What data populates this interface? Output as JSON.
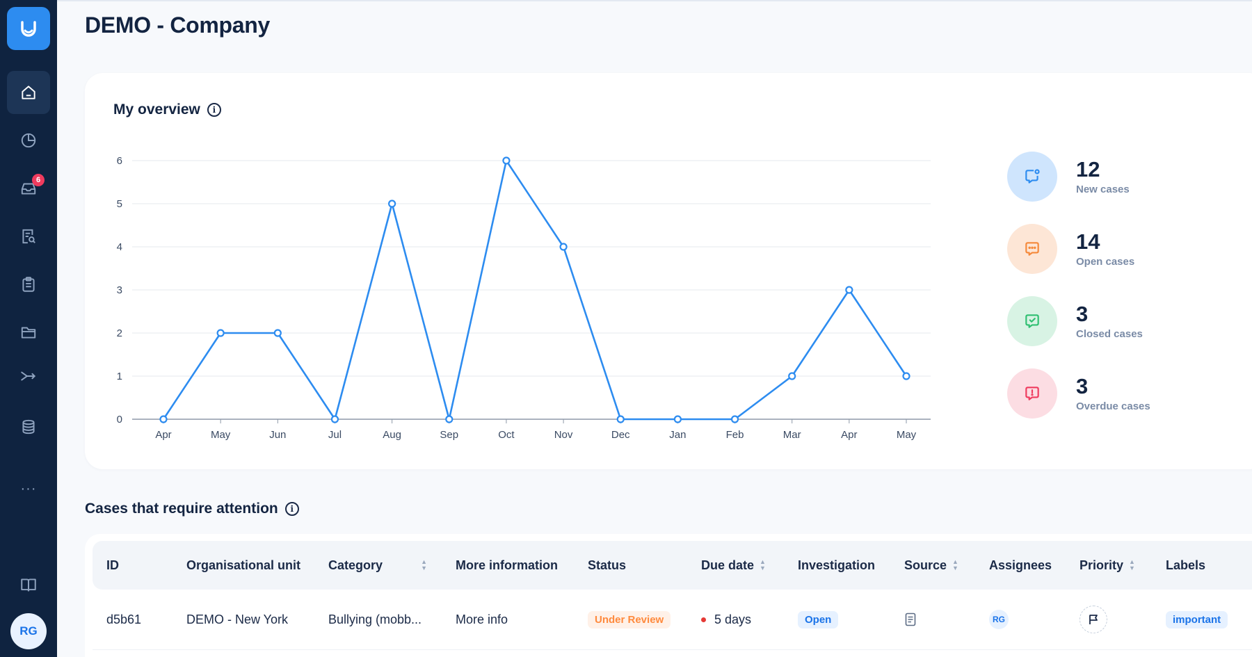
{
  "app": {
    "title": "DEMO - Company",
    "user_initials": "RG"
  },
  "sidebar": {
    "items": [
      {
        "name": "home",
        "icon": "home-icon",
        "active": true
      },
      {
        "name": "reports",
        "icon": "pie-chart-icon"
      },
      {
        "name": "inbox",
        "icon": "inbox-icon",
        "badge": "6"
      },
      {
        "name": "search-documents",
        "icon": "document-search-icon"
      },
      {
        "name": "tasks",
        "icon": "clipboard-icon"
      },
      {
        "name": "folders",
        "icon": "folder-icon"
      },
      {
        "name": "routing",
        "icon": "route-icon"
      },
      {
        "name": "database",
        "icon": "database-icon"
      }
    ],
    "more": "···",
    "help_icon": "book-help-icon"
  },
  "overview": {
    "title": "My overview",
    "stats": [
      {
        "value": "12",
        "label": "New cases",
        "color": "#2d8cf0",
        "bg": "#cfe5fd",
        "icon": "chat-new-icon"
      },
      {
        "value": "14",
        "label": "Open cases",
        "color": "#f5893a",
        "bg": "#fde6d6",
        "icon": "chat-dots-icon"
      },
      {
        "value": "3",
        "label": "Closed cases",
        "color": "#2fbf71",
        "bg": "#d8f3e4",
        "icon": "chat-check-icon"
      },
      {
        "value": "3",
        "label": "Overdue cases",
        "color": "#ef3b5e",
        "bg": "#fcdde3",
        "icon": "chat-alert-icon"
      }
    ]
  },
  "chart_data": {
    "type": "line",
    "categories": [
      "Apr",
      "May",
      "Jun",
      "Jul",
      "Aug",
      "Sep",
      "Oct",
      "Nov",
      "Dec",
      "Jan",
      "Feb",
      "Mar",
      "Apr",
      "May"
    ],
    "values": [
      0,
      2,
      2,
      0,
      5,
      0,
      6,
      4,
      0,
      0,
      0,
      1,
      3,
      1
    ],
    "ylim": [
      0,
      6
    ],
    "yticks": [
      "0",
      "1",
      "2",
      "3",
      "4",
      "5",
      "6"
    ],
    "grid": true,
    "color": "#2d8cf0"
  },
  "attention": {
    "title": "Cases that require attention",
    "columns": [
      {
        "label": "ID",
        "sortable": false
      },
      {
        "label": "Organisational unit",
        "sortable": false
      },
      {
        "label": "Category",
        "sortable": true
      },
      {
        "label": "More information",
        "sortable": false
      },
      {
        "label": "Status",
        "sortable": false
      },
      {
        "label": "Due date",
        "sortable": true
      },
      {
        "label": "Investigation",
        "sortable": false
      },
      {
        "label": "Source",
        "sortable": true
      },
      {
        "label": "Assignees",
        "sortable": false
      },
      {
        "label": "Priority",
        "sortable": true
      },
      {
        "label": "Labels",
        "sortable": false
      }
    ],
    "rows": [
      {
        "id": "d5b61",
        "unit": "DEMO - New York",
        "category": "Bullying (mobb...",
        "more_info": "More info",
        "status": "Under Review",
        "due": "5 days",
        "investigation": "Open",
        "source_icon": "document-icon",
        "assignee": "RG",
        "priority_icon": "flag-icon",
        "label": "important"
      }
    ]
  }
}
